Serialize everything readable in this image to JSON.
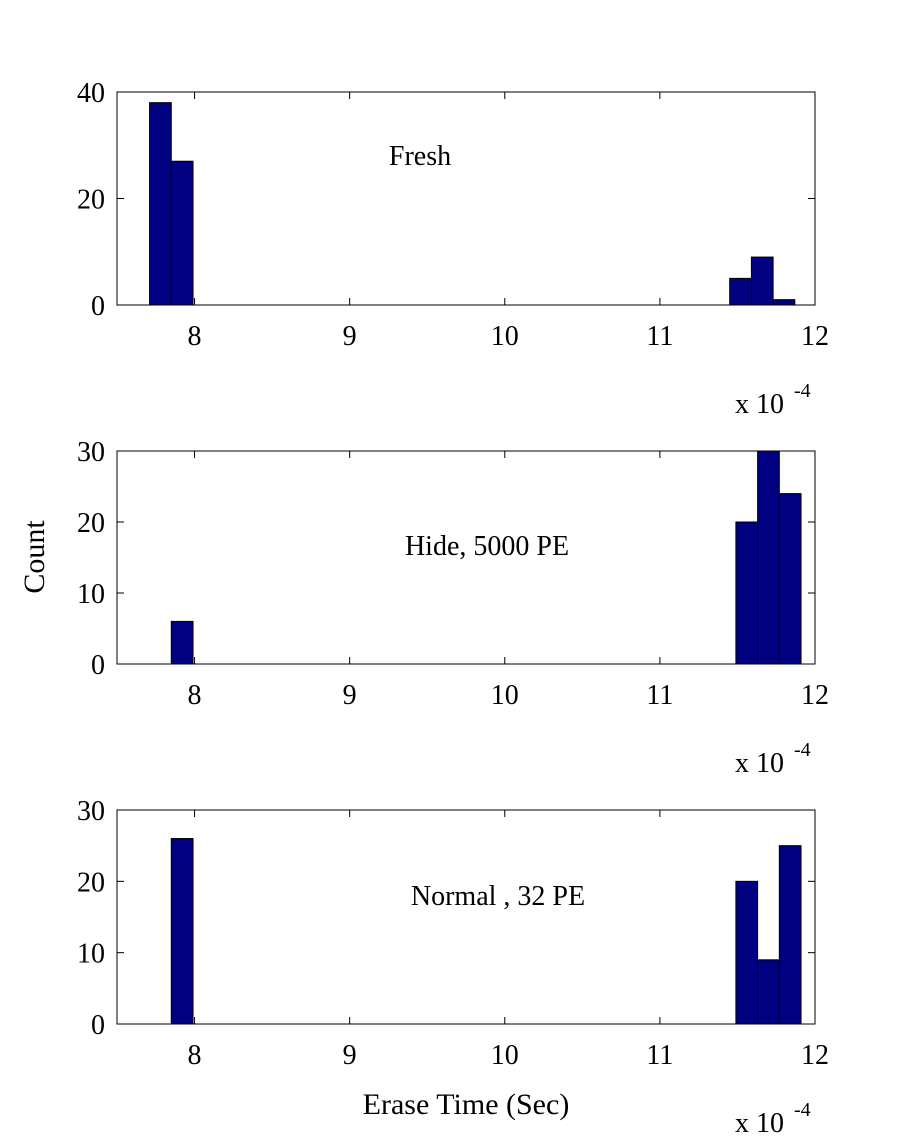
{
  "chart_data": [
    {
      "type": "bar",
      "label": "Fresh",
      "bars": [
        {
          "x": 7.78,
          "value": 38
        },
        {
          "x": 7.92,
          "value": 27
        },
        {
          "x": 11.52,
          "value": 5
        },
        {
          "x": 11.66,
          "value": 9
        },
        {
          "x": 11.8,
          "value": 1
        }
      ],
      "bin_width": 0.14,
      "xlim": [
        7.5,
        12
      ],
      "ylim": [
        0,
        40
      ],
      "xticks": [
        "8",
        "9",
        "10",
        "11",
        "12"
      ],
      "yticks": [
        "0",
        "20",
        "40"
      ],
      "xscale_base": "x 10",
      "xscale_exponent": "-4",
      "ylabel": "",
      "xlabel": ""
    },
    {
      "type": "bar",
      "label": "Hide, 5000 PE",
      "bars": [
        {
          "x": 7.92,
          "value": 6
        },
        {
          "x": 11.56,
          "value": 20
        },
        {
          "x": 11.7,
          "value": 30
        },
        {
          "x": 11.84,
          "value": 24
        }
      ],
      "bin_width": 0.14,
      "xlim": [
        7.5,
        12
      ],
      "ylim": [
        0,
        30
      ],
      "xticks": [
        "8",
        "9",
        "10",
        "11",
        "12"
      ],
      "yticks": [
        "0",
        "10",
        "20",
        "30"
      ],
      "xscale_base": "x 10",
      "xscale_exponent": "-4",
      "ylabel": "Count",
      "xlabel": ""
    },
    {
      "type": "bar",
      "label": "Normal , 32 PE",
      "bars": [
        {
          "x": 7.92,
          "value": 26
        },
        {
          "x": 11.56,
          "value": 20
        },
        {
          "x": 11.7,
          "value": 9
        },
        {
          "x": 11.84,
          "value": 25
        }
      ],
      "bin_width": 0.14,
      "xlim": [
        7.5,
        12
      ],
      "ylim": [
        0,
        30
      ],
      "xticks": [
        "8",
        "9",
        "10",
        "11",
        "12"
      ],
      "yticks": [
        "0",
        "10",
        "20",
        "30"
      ],
      "xscale_base": "x 10",
      "xscale_exponent": "-4",
      "ylabel": "",
      "xlabel": "Erase Time (Sec)"
    }
  ],
  "colors": {
    "bar_fill": "#000080",
    "bar_edge": "#000000",
    "axis": "#000000",
    "background": "#ffffff"
  }
}
